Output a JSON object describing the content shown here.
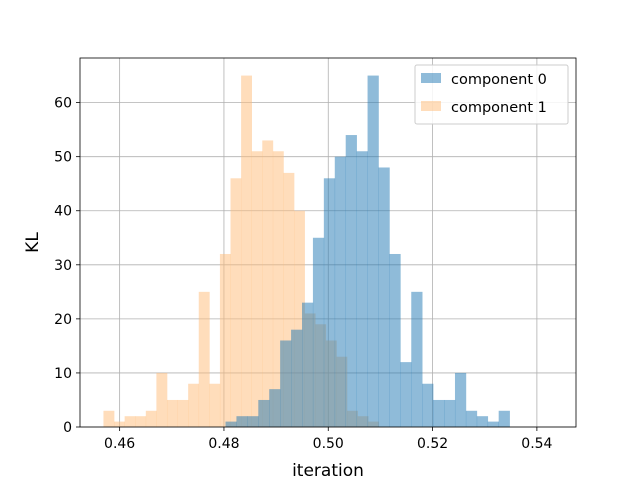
{
  "chart_data": {
    "type": "histogram",
    "xlabel": "iteration",
    "ylabel": "KL",
    "xlim": [
      0.4524,
      0.5475
    ],
    "ylim": [
      0,
      68.25
    ],
    "xticks": [
      0.46,
      0.48,
      0.5,
      0.52,
      0.54
    ],
    "xtick_labels": [
      "0.46",
      "0.48",
      "0.50",
      "0.52",
      "0.54"
    ],
    "yticks": [
      0,
      10,
      20,
      30,
      40,
      50,
      60
    ],
    "ytick_labels": [
      "0",
      "10",
      "20",
      "30",
      "40",
      "50",
      "60"
    ],
    "grid": true,
    "legend_position": "top-right",
    "series": [
      {
        "name": "component 1",
        "color": "#ffbb78",
        "alpha": 0.5,
        "bin_start": 0.4569,
        "bin_width": 0.00203,
        "counts": [
          3,
          1,
          2,
          2,
          3,
          10,
          5,
          5,
          8,
          25,
          8,
          32,
          46,
          65,
          51,
          53,
          51,
          47,
          40,
          21,
          19,
          16,
          13,
          3,
          2,
          1
        ]
      },
      {
        "name": "component 0",
        "color": "#1f77b4",
        "alpha": 0.5,
        "bin_start": 0.4803,
        "bin_width": 0.002095,
        "counts": [
          1,
          2,
          2,
          5,
          7,
          16,
          18,
          23,
          35,
          46,
          50,
          54,
          51,
          65,
          48,
          32,
          12,
          25,
          8,
          5,
          5,
          10,
          3,
          2,
          1,
          3
        ]
      }
    ]
  }
}
